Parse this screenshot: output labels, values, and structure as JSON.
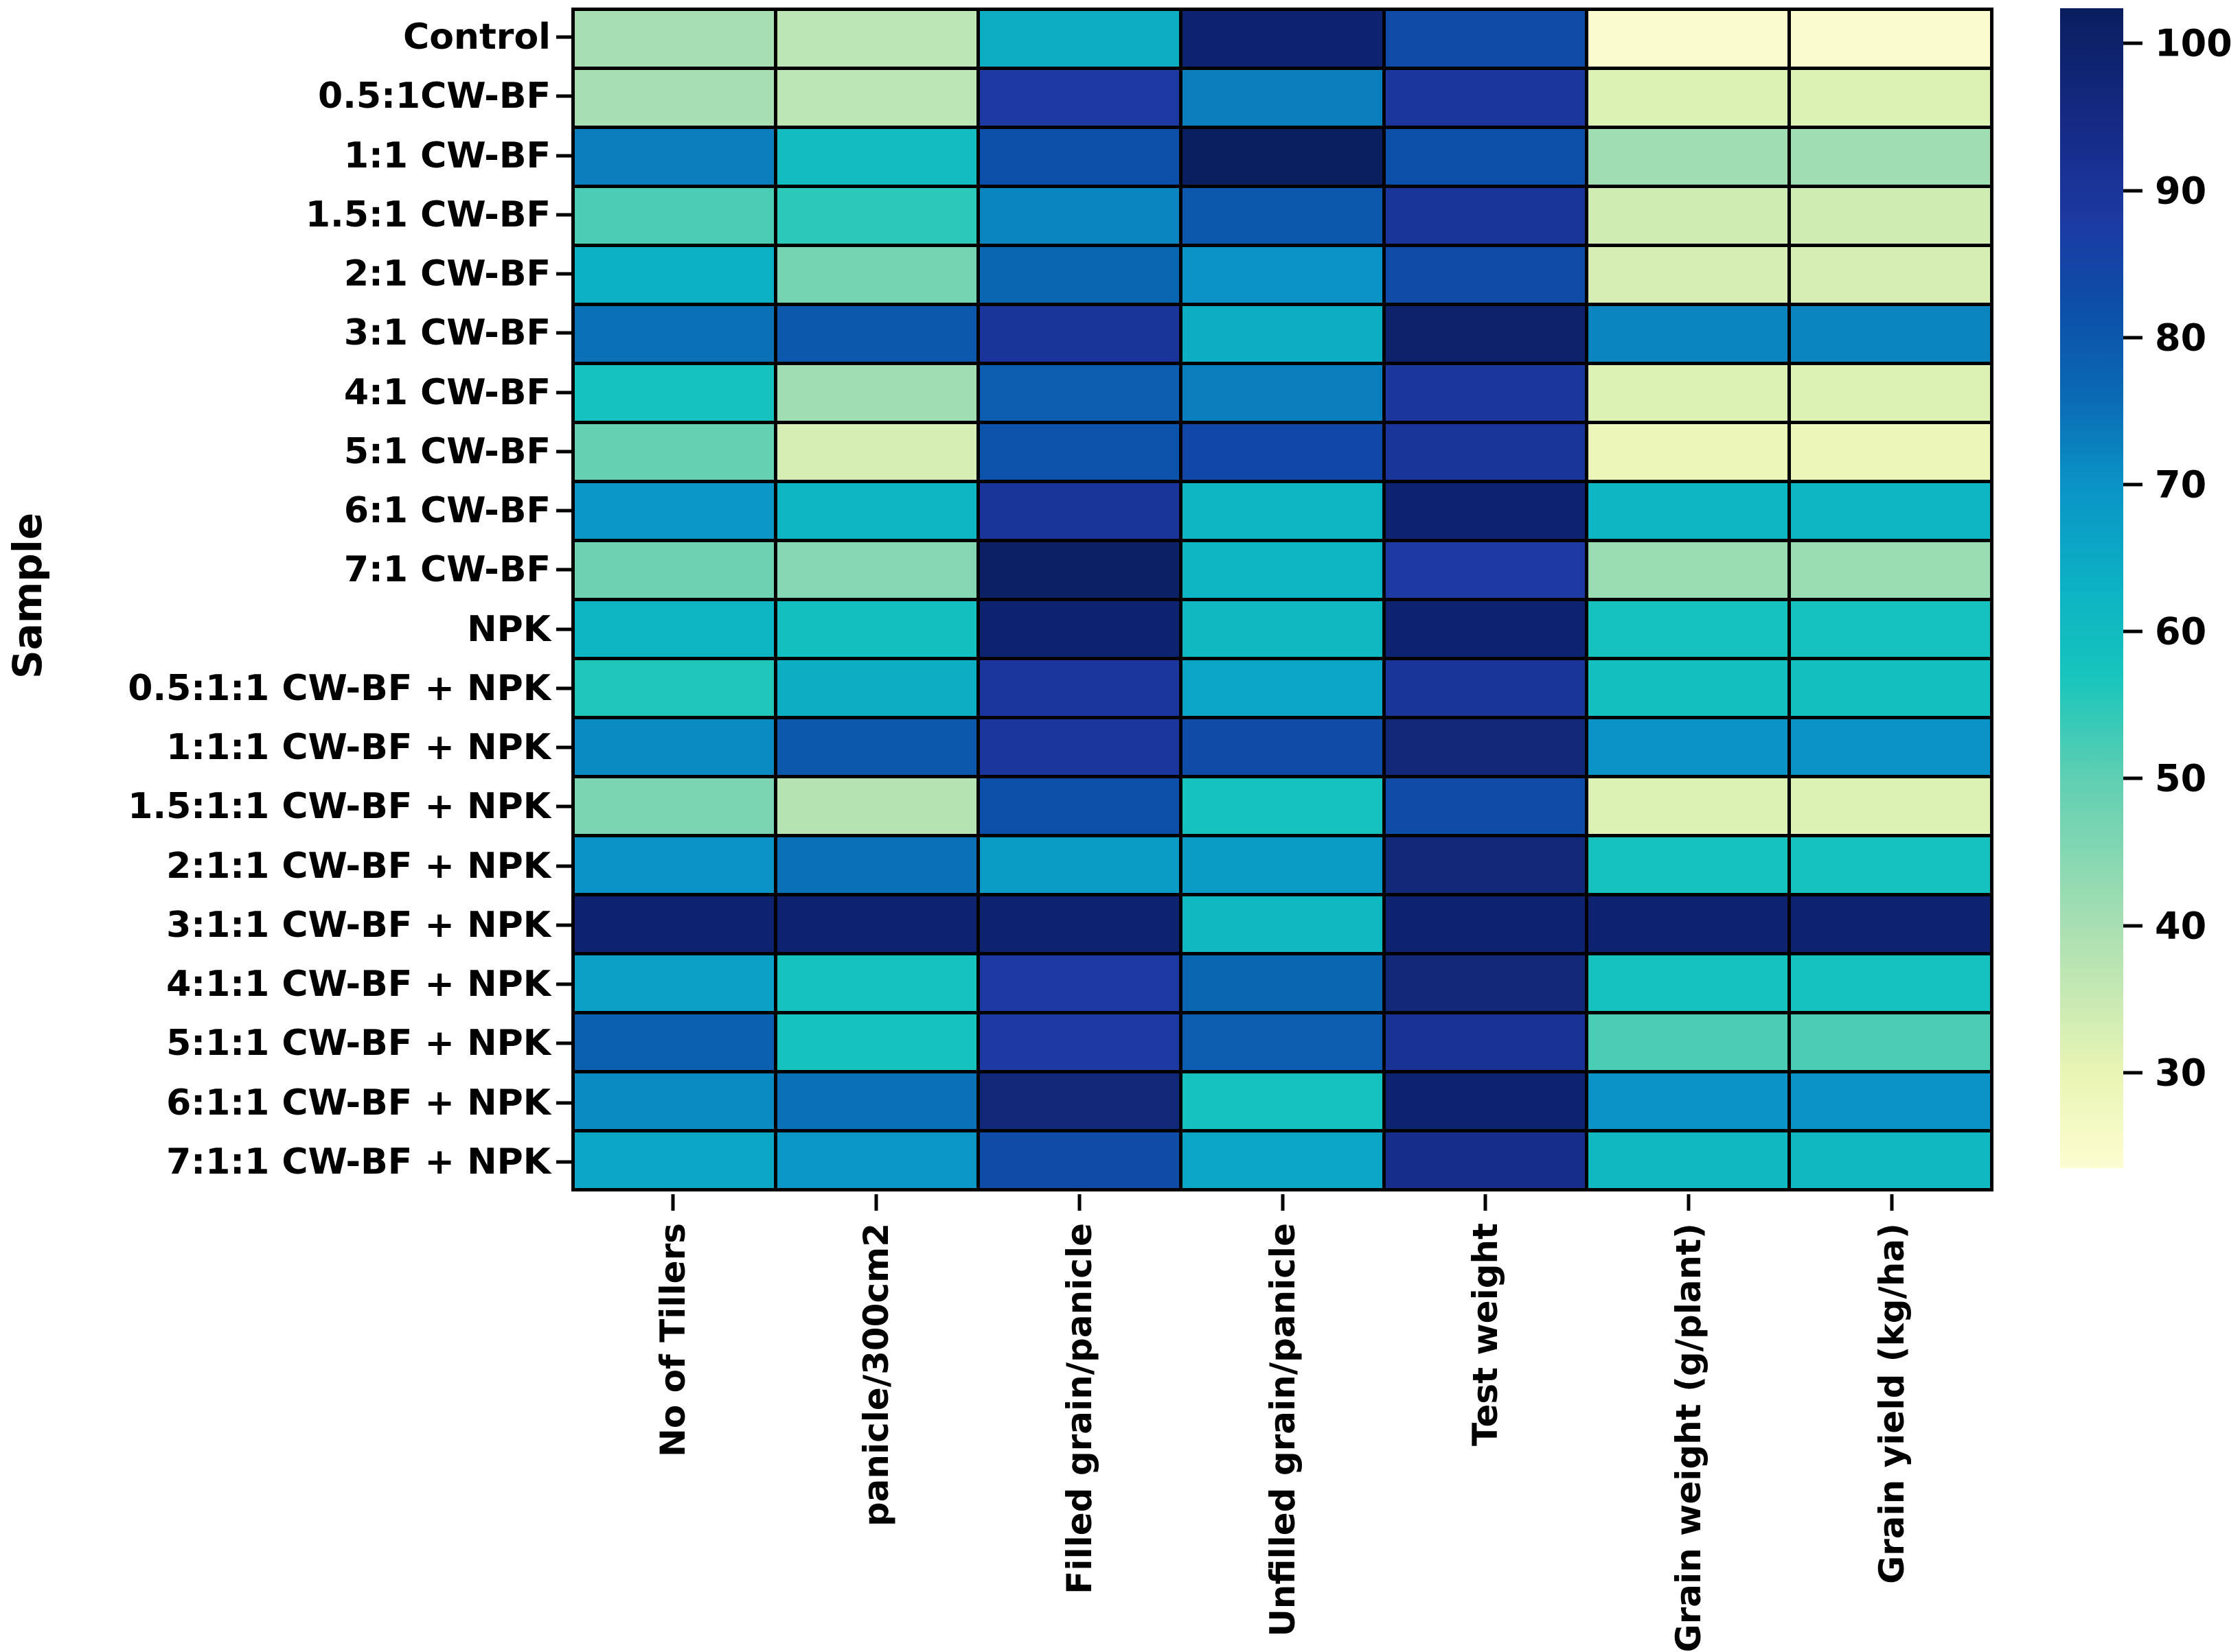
{
  "chart_data": {
    "type": "heatmap",
    "title": "",
    "ylabel": "Sample",
    "xlabel": "",
    "rows": [
      "Control",
      "0.5:1CW-BF",
      "1:1 CW-BF",
      "1.5:1 CW-BF",
      "2:1 CW-BF",
      "3:1 CW-BF",
      "4:1 CW-BF",
      "5:1 CW-BF",
      "6:1 CW-BF",
      "7:1 CW-BF",
      "NPK",
      "0.5:1:1 CW-BF + NPK",
      "1:1:1 CW-BF + NPK",
      "1.5:1:1 CW-BF + NPK",
      "2:1:1 CW-BF + NPK",
      "3:1:1 CW-BF + NPK",
      "4:1:1 CW-BF + NPK",
      "5:1:1 CW-BF + NPK",
      "6:1:1 CW-BF + NPK",
      "7:1:1 CW-BF + NPK"
    ],
    "columns": [
      "No of Tillers",
      "panicle/300cm2",
      "Filled grain/panicle",
      "Unfilled grain/panicle",
      "Test weight",
      "Grain weight (g/plant)",
      "Grain yield (kg/ha)"
    ],
    "values": [
      [
        40,
        37,
        64,
        99,
        83,
        24,
        24
      ],
      [
        40,
        37,
        88,
        73,
        89,
        32,
        32
      ],
      [
        73,
        60,
        82,
        102,
        82,
        41,
        41
      ],
      [
        52,
        55,
        72,
        80,
        90,
        34,
        34
      ],
      [
        63,
        47,
        77,
        70,
        83,
        33,
        33
      ],
      [
        75,
        80,
        90,
        64,
        100,
        72,
        72
      ],
      [
        58,
        41,
        79,
        73,
        89,
        32,
        32
      ],
      [
        49,
        33,
        81,
        84,
        90,
        29,
        29
      ],
      [
        69,
        62,
        90,
        62,
        99,
        62,
        62
      ],
      [
        48,
        45,
        101,
        62,
        88,
        42,
        42
      ],
      [
        62,
        59,
        99,
        61,
        99,
        58,
        58
      ],
      [
        56,
        64,
        89,
        66,
        90,
        59,
        59
      ],
      [
        71,
        80,
        89,
        83,
        97,
        70,
        70
      ],
      [
        46,
        38,
        82,
        58,
        83,
        32,
        32
      ],
      [
        70,
        75,
        68,
        68,
        97,
        58,
        58
      ],
      [
        99,
        99,
        99,
        61,
        99,
        99,
        99
      ],
      [
        67,
        58,
        88,
        77,
        97,
        58,
        58
      ],
      [
        78,
        58,
        88,
        79,
        91,
        52,
        52
      ],
      [
        71,
        75,
        97,
        58,
        99,
        70,
        70
      ],
      [
        66,
        69,
        83,
        66,
        93,
        61,
        61
      ]
    ],
    "vmin": 23.5,
    "vmax": 102.4,
    "colorbar_ticks": [
      100,
      90,
      80,
      70,
      60,
      50,
      40,
      30
    ],
    "colormap_name": "YlGnBu",
    "colormap_stops": [
      [
        23.5,
        "#fcfdd0"
      ],
      [
        30,
        "#e9f5b4"
      ],
      [
        40,
        "#a8dfb2"
      ],
      [
        50,
        "#5fcfb2"
      ],
      [
        57,
        "#17c5bd"
      ],
      [
        63,
        "#0cb2c4"
      ],
      [
        70,
        "#0a93c6"
      ],
      [
        76,
        "#0b6ab4"
      ],
      [
        82,
        "#0c4fa9"
      ],
      [
        88,
        "#1c3aa2"
      ],
      [
        93,
        "#172d8c"
      ],
      [
        102.4,
        "#091e5e"
      ]
    ],
    "grid_line_color": "#000000",
    "background_color": "#ffffff",
    "legend_position": "right-colorbar",
    "grid": false
  }
}
